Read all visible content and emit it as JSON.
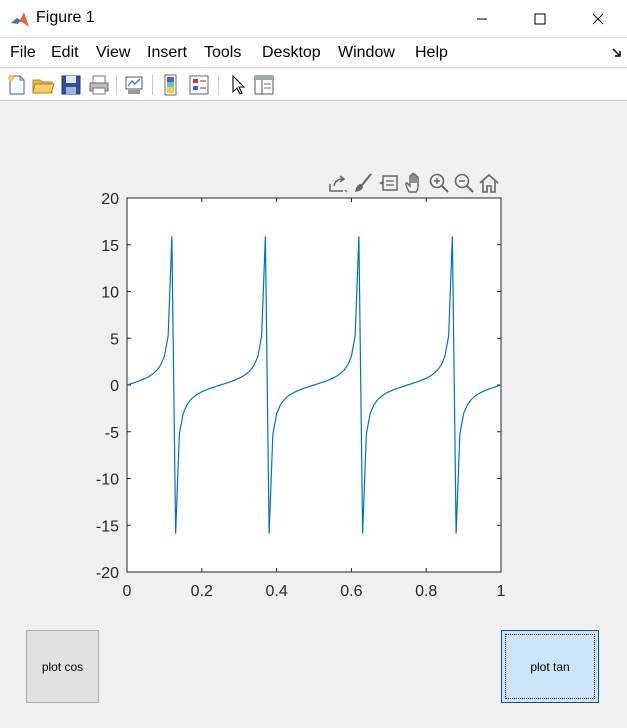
{
  "window": {
    "title": "Figure 1"
  },
  "menu": [
    "File",
    "Edit",
    "View",
    "Insert",
    "Tools",
    "Desktop",
    "Window",
    "Help"
  ],
  "toolbar_icons": [
    "new-figure-icon",
    "open-file-icon",
    "save-icon",
    "print-icon",
    "link-plot-icon",
    "insert-colorbar-icon",
    "insert-legend-icon",
    "edit-plot-icon",
    "property-inspector-icon"
  ],
  "axes_toolbar_icons": [
    "export-icon",
    "brush-icon",
    "data-tips-icon",
    "pan-icon",
    "zoom-in-icon",
    "zoom-out-icon",
    "home-icon"
  ],
  "buttons": {
    "cos_label": "plot cos",
    "tan_label": "plot tan"
  },
  "colors": {
    "line": "#0072bd",
    "tan_button": "#cce4f7",
    "cos_button": "#e1e1e1"
  },
  "chart_data": {
    "type": "line",
    "title": "",
    "xlabel": "",
    "ylabel": "",
    "xlim": [
      0,
      1
    ],
    "ylim": [
      -20,
      20
    ],
    "x_ticks": [
      0,
      0.2,
      0.4,
      0.6,
      0.8,
      1
    ],
    "x_tick_labels": [
      "0",
      "0.2",
      "0.4",
      "0.6",
      "0.8",
      "1"
    ],
    "y_ticks": [
      -20,
      -15,
      -10,
      -5,
      0,
      5,
      10,
      15,
      20
    ],
    "y_tick_labels": [
      "-20",
      "-15",
      "-10",
      "-5",
      "0",
      "5",
      "10",
      "15",
      "20"
    ],
    "grid": false,
    "series": [
      {
        "x": [
          0,
          0.01,
          0.02,
          0.03,
          0.04,
          0.05,
          0.06,
          0.07,
          0.08,
          0.09,
          0.1,
          0.11,
          0.12,
          0.13,
          0.14,
          0.15,
          0.16,
          0.17,
          0.18,
          0.19,
          0.2,
          0.21,
          0.22,
          0.23,
          0.24,
          0.25,
          0.26,
          0.27,
          0.28,
          0.29,
          0.3,
          0.31,
          0.32,
          0.33,
          0.34,
          0.35,
          0.36,
          0.37,
          0.38,
          0.39,
          0.4,
          0.41,
          0.42,
          0.43,
          0.44,
          0.45,
          0.46,
          0.47,
          0.48,
          0.49,
          0.5,
          0.51,
          0.52,
          0.53,
          0.54,
          0.55,
          0.56,
          0.57,
          0.58,
          0.59,
          0.6,
          0.61,
          0.62,
          0.63,
          0.64,
          0.65,
          0.66,
          0.67,
          0.68,
          0.69,
          0.7,
          0.71,
          0.72,
          0.73,
          0.74,
          0.75,
          0.76,
          0.77,
          0.78,
          0.79,
          0.8,
          0.81,
          0.82,
          0.83,
          0.84,
          0.85,
          0.86,
          0.87,
          0.88,
          0.89,
          0.9,
          0.91,
          0.92,
          0.93,
          0.94,
          0.95,
          0.96,
          0.97,
          0.98,
          0.99,
          1
        ],
        "y": [
          0,
          0.1263,
          0.2568,
          0.3959,
          0.5497,
          0.7265,
          0.9391,
          1.2088,
          1.5757,
          2.1251,
          3.0777,
          5.2422,
          15.8945,
          -15.8945,
          -5.2422,
          -3.0777,
          -2.1251,
          -1.5757,
          -1.2088,
          -0.9391,
          -0.7265,
          -0.5497,
          -0.3959,
          -0.2568,
          -0.1263,
          0,
          0.1263,
          0.2568,
          0.3959,
          0.5497,
          0.7265,
          0.9391,
          1.2088,
          1.5757,
          2.1251,
          3.0777,
          5.2422,
          15.8945,
          -15.8945,
          -5.2422,
          -3.0777,
          -2.1251,
          -1.5757,
          -1.2088,
          -0.9391,
          -0.7265,
          -0.5497,
          -0.3959,
          -0.2568,
          -0.1263,
          0,
          0.1263,
          0.2568,
          0.3959,
          0.5497,
          0.7265,
          0.9391,
          1.2088,
          1.5757,
          2.1251,
          3.0777,
          5.2422,
          15.8945,
          -15.8945,
          -5.2422,
          -3.0777,
          -2.1251,
          -1.5757,
          -1.2088,
          -0.9391,
          -0.7265,
          -0.5497,
          -0.3959,
          -0.2568,
          -0.1263,
          0,
          0.1263,
          0.2568,
          0.3959,
          0.5497,
          0.7265,
          0.9391,
          1.2088,
          1.5757,
          2.1251,
          3.0777,
          5.2422,
          15.8945,
          -15.8945,
          -5.2422,
          -3.0777,
          -2.1251,
          -1.5757,
          -1.2088,
          -0.9391,
          -0.7265,
          -0.5497,
          -0.3959,
          -0.2568,
          -0.1263,
          0
        ]
      }
    ]
  }
}
